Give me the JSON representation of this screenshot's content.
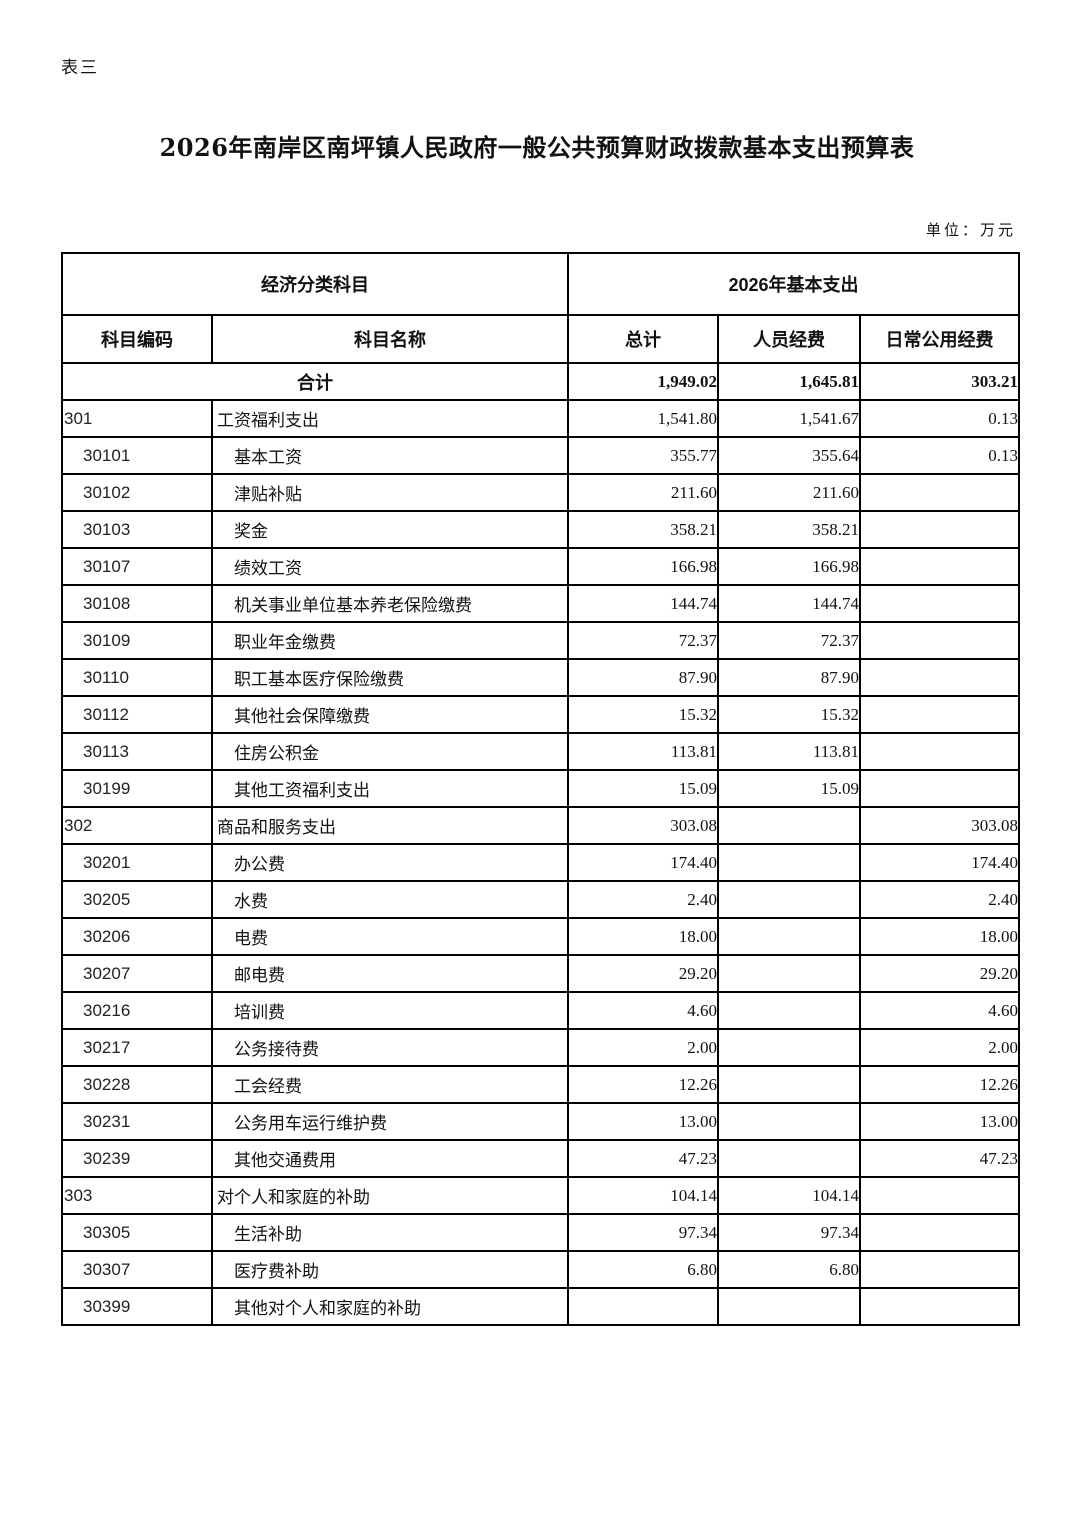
{
  "page": {
    "corner_label": "表三",
    "title": "2026年南岸区南坪镇人民政府一般公共预算财政拨款基本支出预算表",
    "unit_label": "单位：万元"
  },
  "table": {
    "header": {
      "group1": "经济分类科目",
      "group2": "2026年基本支出",
      "columns": [
        "科目编码",
        "科目名称",
        "总计",
        "人员经费",
        "日常公用经费"
      ]
    },
    "total_row": {
      "label": "合计",
      "total": "1,949.02",
      "personnel": "1,645.81",
      "daily": "303.21"
    },
    "rows": [
      {
        "code": "301",
        "name": "工资福利支出",
        "total": "1,541.80",
        "personnel": "1,541.67",
        "daily": "0.13",
        "level": 1
      },
      {
        "code": "30101",
        "name": "基本工资",
        "total": "355.77",
        "personnel": "355.64",
        "daily": "0.13",
        "level": 2
      },
      {
        "code": "30102",
        "name": "津贴补贴",
        "total": "211.60",
        "personnel": "211.60",
        "daily": "",
        "level": 2
      },
      {
        "code": "30103",
        "name": "奖金",
        "total": "358.21",
        "personnel": "358.21",
        "daily": "",
        "level": 2
      },
      {
        "code": "30107",
        "name": "绩效工资",
        "total": "166.98",
        "personnel": "166.98",
        "daily": "",
        "level": 2
      },
      {
        "code": "30108",
        "name": "机关事业单位基本养老保险缴费",
        "total": "144.74",
        "personnel": "144.74",
        "daily": "",
        "level": 2
      },
      {
        "code": "30109",
        "name": "职业年金缴费",
        "total": "72.37",
        "personnel": "72.37",
        "daily": "",
        "level": 2
      },
      {
        "code": "30110",
        "name": "职工基本医疗保险缴费",
        "total": "87.90",
        "personnel": "87.90",
        "daily": "",
        "level": 2
      },
      {
        "code": "30112",
        "name": "其他社会保障缴费",
        "total": "15.32",
        "personnel": "15.32",
        "daily": "",
        "level": 2
      },
      {
        "code": "30113",
        "name": "住房公积金",
        "total": "113.81",
        "personnel": "113.81",
        "daily": "",
        "level": 2
      },
      {
        "code": "30199",
        "name": "其他工资福利支出",
        "total": "15.09",
        "personnel": "15.09",
        "daily": "",
        "level": 2
      },
      {
        "code": "302",
        "name": "商品和服务支出",
        "total": "303.08",
        "personnel": "",
        "daily": "303.08",
        "level": 1
      },
      {
        "code": "30201",
        "name": "办公费",
        "total": "174.40",
        "personnel": "",
        "daily": "174.40",
        "level": 2
      },
      {
        "code": "30205",
        "name": "水费",
        "total": "2.40",
        "personnel": "",
        "daily": "2.40",
        "level": 2
      },
      {
        "code": "30206",
        "name": "电费",
        "total": "18.00",
        "personnel": "",
        "daily": "18.00",
        "level": 2
      },
      {
        "code": "30207",
        "name": "邮电费",
        "total": "29.20",
        "personnel": "",
        "daily": "29.20",
        "level": 2
      },
      {
        "code": "30216",
        "name": "培训费",
        "total": "4.60",
        "personnel": "",
        "daily": "4.60",
        "level": 2
      },
      {
        "code": "30217",
        "name": "公务接待费",
        "total": "2.00",
        "personnel": "",
        "daily": "2.00",
        "level": 2
      },
      {
        "code": "30228",
        "name": "工会经费",
        "total": "12.26",
        "personnel": "",
        "daily": "12.26",
        "level": 2
      },
      {
        "code": "30231",
        "name": "公务用车运行维护费",
        "total": "13.00",
        "personnel": "",
        "daily": "13.00",
        "level": 2
      },
      {
        "code": "30239",
        "name": "其他交通费用",
        "total": "47.23",
        "personnel": "",
        "daily": "47.23",
        "level": 2
      },
      {
        "code": "303",
        "name": "对个人和家庭的补助",
        "total": "104.14",
        "personnel": "104.14",
        "daily": "",
        "level": 1
      },
      {
        "code": "30305",
        "name": "生活补助",
        "total": "97.34",
        "personnel": "97.34",
        "daily": "",
        "level": 2
      },
      {
        "code": "30307",
        "name": "医疗费补助",
        "total": "6.80",
        "personnel": "6.80",
        "daily": "",
        "level": 2
      },
      {
        "code": "30399",
        "name": "其他对个人和家庭的补助",
        "total": "",
        "personnel": "",
        "daily": "",
        "level": 2
      }
    ]
  }
}
